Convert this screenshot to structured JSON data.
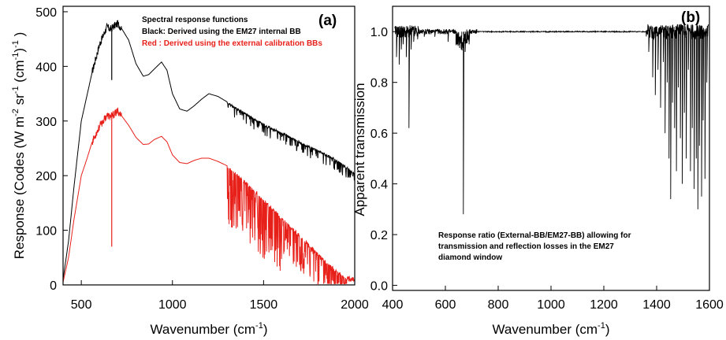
{
  "chart_data": [
    {
      "type": "line",
      "panel_label": "(a)",
      "xlabel": "Wavenumber (cm",
      "xlabel_sup": "-1",
      "xlabel_end": ")",
      "ylabel": "Response (Codes (W m",
      "ylabel_sup1": "-2",
      "ylabel_mid1": " sr",
      "ylabel_sup2": "-1",
      "ylabel_mid2": " (cm",
      "ylabel_sup3": "-1",
      "ylabel_end": ")",
      "ylabel_sup4": "-1",
      "ylabel_tail": " )",
      "xlim": [
        400,
        2000
      ],
      "ylim": [
        0,
        510
      ],
      "xticks": [
        500,
        1000,
        1500,
        2000
      ],
      "yticks": [
        0,
        100,
        200,
        300,
        400,
        500
      ],
      "legend_lines": [
        {
          "text": "Spectral response functions",
          "color": "#000000"
        },
        {
          "text": "Black: Derived using the EM27 internal BB",
          "color": "#000000"
        },
        {
          "text": "Red   : Derived using the external calibration BBs",
          "color": "#e8201a"
        }
      ],
      "series": [
        {
          "color": "#000000",
          "x": [
            400,
            430,
            460,
            500,
            530,
            560,
            600,
            640,
            660,
            680,
            700,
            720,
            760,
            800,
            840,
            870,
            900,
            940,
            970,
            1000,
            1040,
            1080,
            1120,
            1160,
            1200,
            1250,
            1300,
            1400,
            1500,
            1600,
            1700,
            1800,
            1900,
            1950,
            2000
          ],
          "y": [
            10,
            80,
            180,
            300,
            345,
            390,
            440,
            472,
            468,
            474,
            478,
            470,
            448,
            405,
            382,
            385,
            395,
            408,
            393,
            350,
            322,
            318,
            328,
            340,
            350,
            345,
            335,
            315,
            295,
            280,
            262,
            247,
            230,
            218,
            205
          ]
        },
        {
          "color": "#e8201a",
          "x": [
            400,
            430,
            460,
            500,
            530,
            560,
            600,
            640,
            660,
            680,
            700,
            720,
            760,
            800,
            840,
            870,
            900,
            940,
            970,
            1000,
            1040,
            1080,
            1120,
            1160,
            1200,
            1250,
            1300,
            1350,
            1400,
            1450,
            1500,
            1550,
            1600,
            1650,
            1700,
            1750,
            1800,
            1850,
            1900,
            1950,
            2000
          ],
          "y": [
            5,
            50,
            120,
            200,
            230,
            262,
            290,
            310,
            308,
            312,
            318,
            310,
            292,
            270,
            257,
            258,
            266,
            272,
            262,
            238,
            224,
            222,
            228,
            232,
            232,
            226,
            218,
            205,
            190,
            175,
            158,
            142,
            125,
            108,
            92,
            75,
            58,
            42,
            28,
            15,
            15
          ]
        }
      ]
    },
    {
      "type": "line",
      "panel_label": "(b)",
      "xlabel": "Wavenumber (cm",
      "xlabel_sup": "-1",
      "xlabel_end": ")",
      "ylabel": "Apparent transmission",
      "xlim": [
        400,
        1600
      ],
      "ylim": [
        -0.02,
        1.1
      ],
      "xticks": [
        400,
        600,
        800,
        1000,
        1200,
        1400,
        1600
      ],
      "yticks": [
        "0.0",
        "0.2",
        "0.4",
        "0.6",
        "0.8",
        "1.0"
      ],
      "annotation_lines": [
        "Response ratio (External-BB/EM27-BB) allowing for",
        "transmission and reflection losses in the EM27",
        "diamond window"
      ],
      "series": [
        {
          "color": "#000000",
          "baseline": 1.0,
          "dips": [
            [
              415,
              0.9
            ],
            [
              425,
              0.87
            ],
            [
              433,
              0.93
            ],
            [
              440,
              0.95
            ],
            [
              452,
              0.9
            ],
            [
              462,
              0.62
            ],
            [
              470,
              0.93
            ],
            [
              480,
              0.96
            ],
            [
              495,
              0.97
            ],
            [
              520,
              0.98
            ],
            [
              560,
              0.98
            ],
            [
              610,
              0.96
            ],
            [
              640,
              0.95
            ],
            [
              660,
              0.93
            ],
            [
              668,
              0.28
            ],
            [
              675,
              0.92
            ],
            [
              690,
              0.95
            ],
            [
              1370,
              0.92
            ],
            [
              1385,
              0.82
            ],
            [
              1395,
              0.75
            ],
            [
              1405,
              0.85
            ],
            [
              1415,
              0.7
            ],
            [
              1425,
              0.88
            ],
            [
              1432,
              0.6
            ],
            [
              1440,
              0.8
            ],
            [
              1447,
              0.5
            ],
            [
              1453,
              0.34
            ],
            [
              1460,
              0.72
            ],
            [
              1468,
              0.62
            ],
            [
              1475,
              0.45
            ],
            [
              1482,
              0.78
            ],
            [
              1490,
              0.58
            ],
            [
              1497,
              0.4
            ],
            [
              1505,
              0.68
            ],
            [
              1512,
              0.5
            ],
            [
              1520,
              0.85
            ],
            [
              1528,
              0.45
            ],
            [
              1535,
              0.62
            ],
            [
              1542,
              0.38
            ],
            [
              1550,
              0.5
            ],
            [
              1556,
              0.3
            ],
            [
              1562,
              0.55
            ],
            [
              1570,
              0.35
            ],
            [
              1576,
              0.65
            ],
            [
              1583,
              0.42
            ],
            [
              1590,
              0.8
            ]
          ]
        }
      ]
    }
  ]
}
